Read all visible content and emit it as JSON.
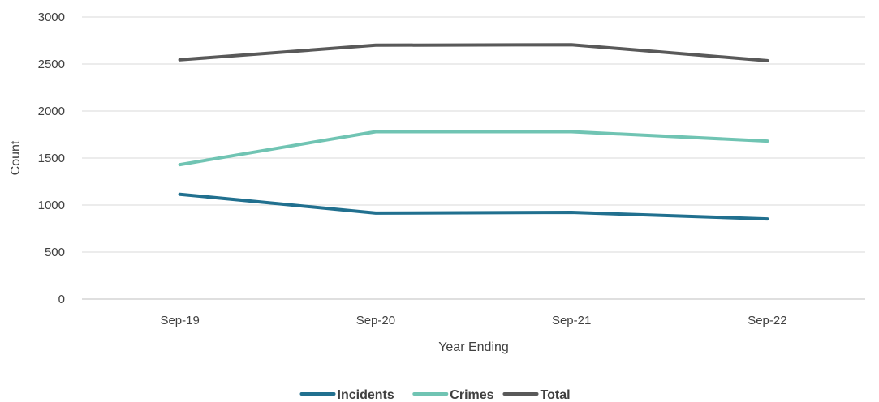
{
  "chart_data": {
    "type": "line",
    "title": "",
    "xlabel": "Year Ending",
    "ylabel": "Count",
    "categories": [
      "Sep-19",
      "Sep-20",
      "Sep-21",
      "Sep-22"
    ],
    "ylim": [
      0,
      3000
    ],
    "yticks": [
      0,
      500,
      1000,
      1500,
      2000,
      2500,
      3000
    ],
    "grid": true,
    "legend_position": "bottom",
    "series": [
      {
        "name": "Incidents",
        "color": "#21708F",
        "values": [
          1115,
          915,
          922,
          853
        ]
      },
      {
        "name": "Crimes",
        "color": "#70C4B3",
        "values": [
          1430,
          1780,
          1780,
          1680
        ]
      },
      {
        "name": "Total",
        "color": "#595959",
        "values": [
          2545,
          2700,
          2705,
          2535
        ]
      }
    ]
  }
}
